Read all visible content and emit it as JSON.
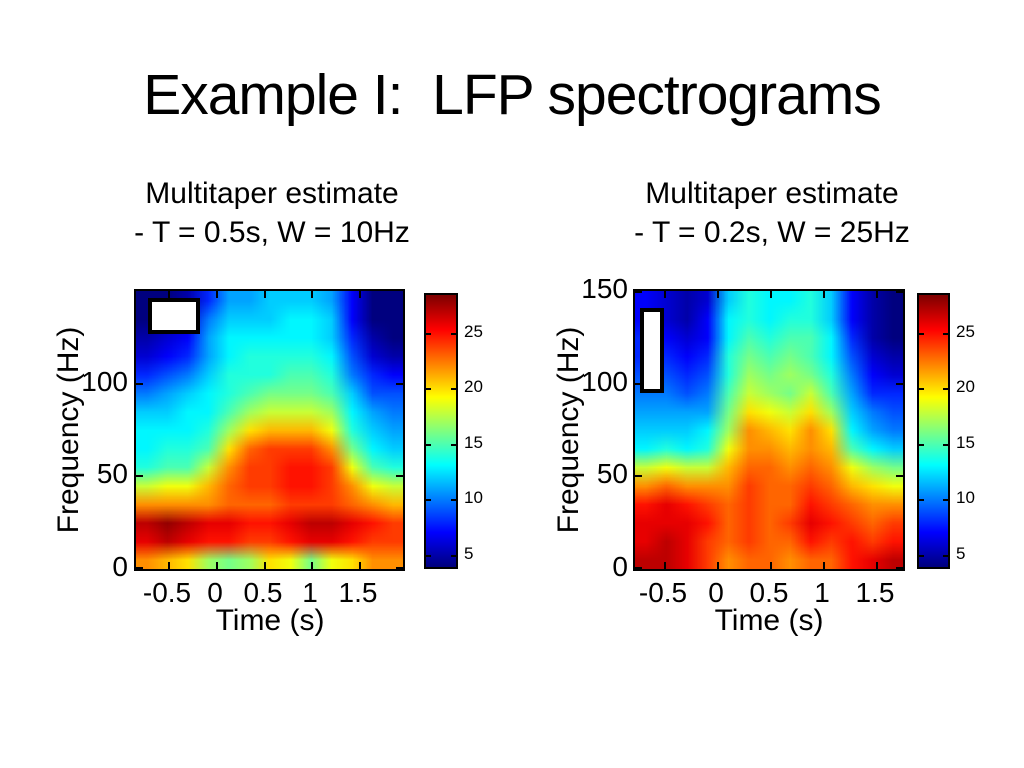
{
  "slide": {
    "title": "Example I:  LFP spectrograms",
    "background_color": "#ffffff",
    "text_color": "#000000"
  },
  "panels": [
    {
      "subtitle_line1": "Multitaper estimate",
      "subtitle_line2": "- T = 0.5s, W = 10Hz"
    },
    {
      "subtitle_line1": "Multitaper estimate",
      "subtitle_line2": "- T = 0.2s, W = 25Hz"
    }
  ],
  "chart_data": [
    {
      "type": "heatmap",
      "title": "Multitaper estimate - T = 0.5s, W = 10Hz",
      "xlabel": "Time (s)",
      "ylabel": "Frequency (Hz)",
      "x_range": [
        -0.85,
        1.95
      ],
      "y_range": [
        0,
        150
      ],
      "xticks": [
        -0.5,
        0,
        0.5,
        1,
        1.5
      ],
      "yticks": [
        0,
        50,
        100
      ],
      "colormap": "jet",
      "clim": [
        4,
        28.5
      ],
      "colorbar_ticks": [
        5,
        10,
        15,
        20,
        25
      ],
      "time_bin_centers_s": [
        -0.74,
        -0.53,
        -0.31,
        -0.1,
        0.12,
        0.33,
        0.55,
        0.76,
        0.98,
        1.19,
        1.41,
        1.62,
        1.84
      ],
      "freq_bin_centers_hz": [
        145,
        135,
        125,
        115,
        105,
        95,
        85,
        75,
        65,
        55,
        45,
        35,
        25,
        15,
        5
      ],
      "values": [
        [
          4,
          4,
          5,
          8,
          11,
          11,
          12,
          12,
          12,
          11,
          7,
          4,
          4
        ],
        [
          4,
          5,
          6,
          10,
          12,
          12,
          12,
          13,
          13,
          12,
          7,
          4,
          4
        ],
        [
          5,
          6,
          7,
          11,
          13,
          13,
          13,
          13,
          13,
          12,
          8,
          5,
          4
        ],
        [
          6,
          7,
          8,
          11,
          13,
          14,
          14,
          14,
          14,
          13,
          9,
          6,
          5
        ],
        [
          8,
          9,
          10,
          12,
          14,
          14,
          14,
          15,
          15,
          14,
          10,
          8,
          7
        ],
        [
          10,
          11,
          12,
          13,
          14,
          15,
          16,
          16,
          16,
          15,
          12,
          9,
          9
        ],
        [
          12,
          12,
          13,
          13,
          15,
          17,
          18,
          18,
          18,
          17,
          13,
          11,
          10
        ],
        [
          13,
          13,
          13,
          14,
          17,
          20,
          21,
          21,
          21,
          19,
          14,
          12,
          11
        ],
        [
          13,
          14,
          14,
          15,
          20,
          23,
          24,
          24,
          24,
          22,
          16,
          13,
          12
        ],
        [
          14,
          15,
          15,
          18,
          22,
          24,
          24,
          25,
          25,
          24,
          19,
          15,
          14
        ],
        [
          18,
          19,
          19,
          21,
          23,
          24,
          24,
          25,
          25,
          24,
          22,
          19,
          18
        ],
        [
          22,
          22,
          22,
          22,
          23,
          23,
          23,
          24,
          24,
          24,
          23,
          22,
          21
        ],
        [
          27,
          28,
          27,
          26,
          26,
          25,
          25,
          26,
          27,
          27,
          26,
          25,
          24
        ],
        [
          26,
          27,
          26,
          25,
          25,
          24,
          24,
          25,
          26,
          26,
          25,
          24,
          24
        ],
        [
          22,
          21,
          20,
          17,
          16,
          17,
          20,
          19,
          16,
          19,
          20,
          22,
          22
        ]
      ],
      "annotation_box": {
        "time_s": [
          -0.72,
          -0.18
        ],
        "freq_hz": [
          127,
          146
        ]
      }
    },
    {
      "type": "heatmap",
      "title": "Multitaper estimate - T = 0.2s, W = 25Hz",
      "xlabel": "Time (s)",
      "ylabel": "Frequency (Hz)",
      "x_range": [
        -0.78,
        1.74
      ],
      "y_range": [
        0,
        150
      ],
      "xticks": [
        -0.5,
        0,
        0.5,
        1,
        1.5
      ],
      "yticks": [
        0,
        50,
        100,
        150
      ],
      "colormap": "jet",
      "clim": [
        4,
        28.5
      ],
      "colorbar_ticks": [
        5,
        10,
        15,
        20,
        25
      ],
      "time_bin_centers_s": [
        -0.68,
        -0.49,
        -0.29,
        -0.1,
        0.09,
        0.29,
        0.48,
        0.68,
        0.87,
        1.07,
        1.26,
        1.45,
        1.65
      ],
      "freq_bin_centers_hz": [
        145,
        135,
        125,
        115,
        105,
        95,
        85,
        75,
        65,
        55,
        45,
        35,
        25,
        15,
        5
      ],
      "values": [
        [
          7,
          6,
          5,
          6,
          12,
          14,
          13,
          13,
          14,
          12,
          7,
          5,
          4
        ],
        [
          7,
          6,
          5,
          7,
          13,
          14,
          13,
          14,
          14,
          12,
          7,
          5,
          4
        ],
        [
          8,
          7,
          6,
          7,
          13,
          15,
          14,
          15,
          15,
          13,
          8,
          5,
          4
        ],
        [
          8,
          8,
          7,
          8,
          14,
          16,
          15,
          16,
          15,
          13,
          9,
          6,
          5
        ],
        [
          9,
          9,
          8,
          9,
          14,
          17,
          16,
          17,
          16,
          14,
          10,
          7,
          6
        ],
        [
          10,
          10,
          9,
          10,
          15,
          18,
          17,
          16,
          18,
          15,
          11,
          8,
          8
        ],
        [
          11,
          11,
          11,
          11,
          16,
          20,
          19,
          18,
          20,
          17,
          12,
          10,
          9
        ],
        [
          12,
          12,
          12,
          13,
          17,
          22,
          21,
          20,
          22,
          20,
          13,
          11,
          10
        ],
        [
          13,
          14,
          13,
          14,
          19,
          22,
          22,
          21,
          22,
          21,
          15,
          13,
          12
        ],
        [
          18,
          19,
          18,
          18,
          21,
          23,
          23,
          22,
          23,
          22,
          19,
          17,
          16
        ],
        [
          22,
          23,
          22,
          22,
          22,
          24,
          23,
          23,
          24,
          23,
          21,
          20,
          19
        ],
        [
          25,
          26,
          25,
          24,
          23,
          24,
          23,
          23,
          25,
          24,
          23,
          22,
          22
        ],
        [
          26,
          26,
          26,
          25,
          23,
          24,
          23,
          24,
          26,
          25,
          24,
          23,
          24
        ],
        [
          26,
          27,
          26,
          24,
          23,
          24,
          23,
          23,
          25,
          24,
          25,
          24,
          25
        ],
        [
          27,
          27,
          26,
          24,
          22,
          23,
          23,
          22,
          23,
          23,
          25,
          26,
          27
        ]
      ],
      "annotation_box": {
        "time_s": [
          -0.73,
          -0.51
        ],
        "freq_hz": [
          95,
          141
        ]
      }
    }
  ]
}
